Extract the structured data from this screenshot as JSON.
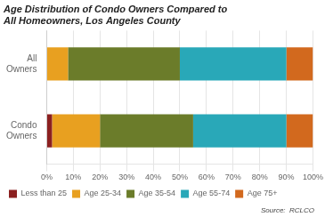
{
  "chart_data": {
    "type": "bar",
    "orientation": "horizontal",
    "stacked": true,
    "title": "Age Distribution of Condo Owners Compared to\nAll Homeowners, Los Angeles County",
    "annotations": [
      "Source:  RCLCO"
    ],
    "categories": [
      "Condo\nOwners",
      "All\nOwners"
    ],
    "series": [
      {
        "name": "Less than 25",
        "color": "#8B2020",
        "values": [
          2,
          0
        ]
      },
      {
        "name": "Age 25-34",
        "color": "#E8A020",
        "values": [
          18,
          8
        ]
      },
      {
        "name": "Age 35-54",
        "color": "#6B7C2A",
        "values": [
          35,
          42
        ]
      },
      {
        "name": "Age 55-74",
        "color": "#29A8B8",
        "values": [
          35,
          40
        ]
      },
      {
        "name": "Age 75+",
        "color": "#D2691E",
        "values": [
          10,
          10
        ]
      }
    ],
    "xlim": [
      0,
      100
    ],
    "xticks": [
      {
        "value": 0,
        "label": "0%"
      },
      {
        "value": 10,
        "label": "10%"
      },
      {
        "value": 20,
        "label": "20%"
      },
      {
        "value": 30,
        "label": "30%"
      },
      {
        "value": 40,
        "label": "40%"
      },
      {
        "value": 50,
        "label": "50%"
      },
      {
        "value": 60,
        "label": "60%"
      },
      {
        "value": 70,
        "label": "70%"
      },
      {
        "value": 80,
        "label": "80%"
      },
      {
        "value": 90,
        "label": "90%"
      },
      {
        "value": 100,
        "label": "100%"
      }
    ],
    "grid": true,
    "legend": "bottom"
  }
}
